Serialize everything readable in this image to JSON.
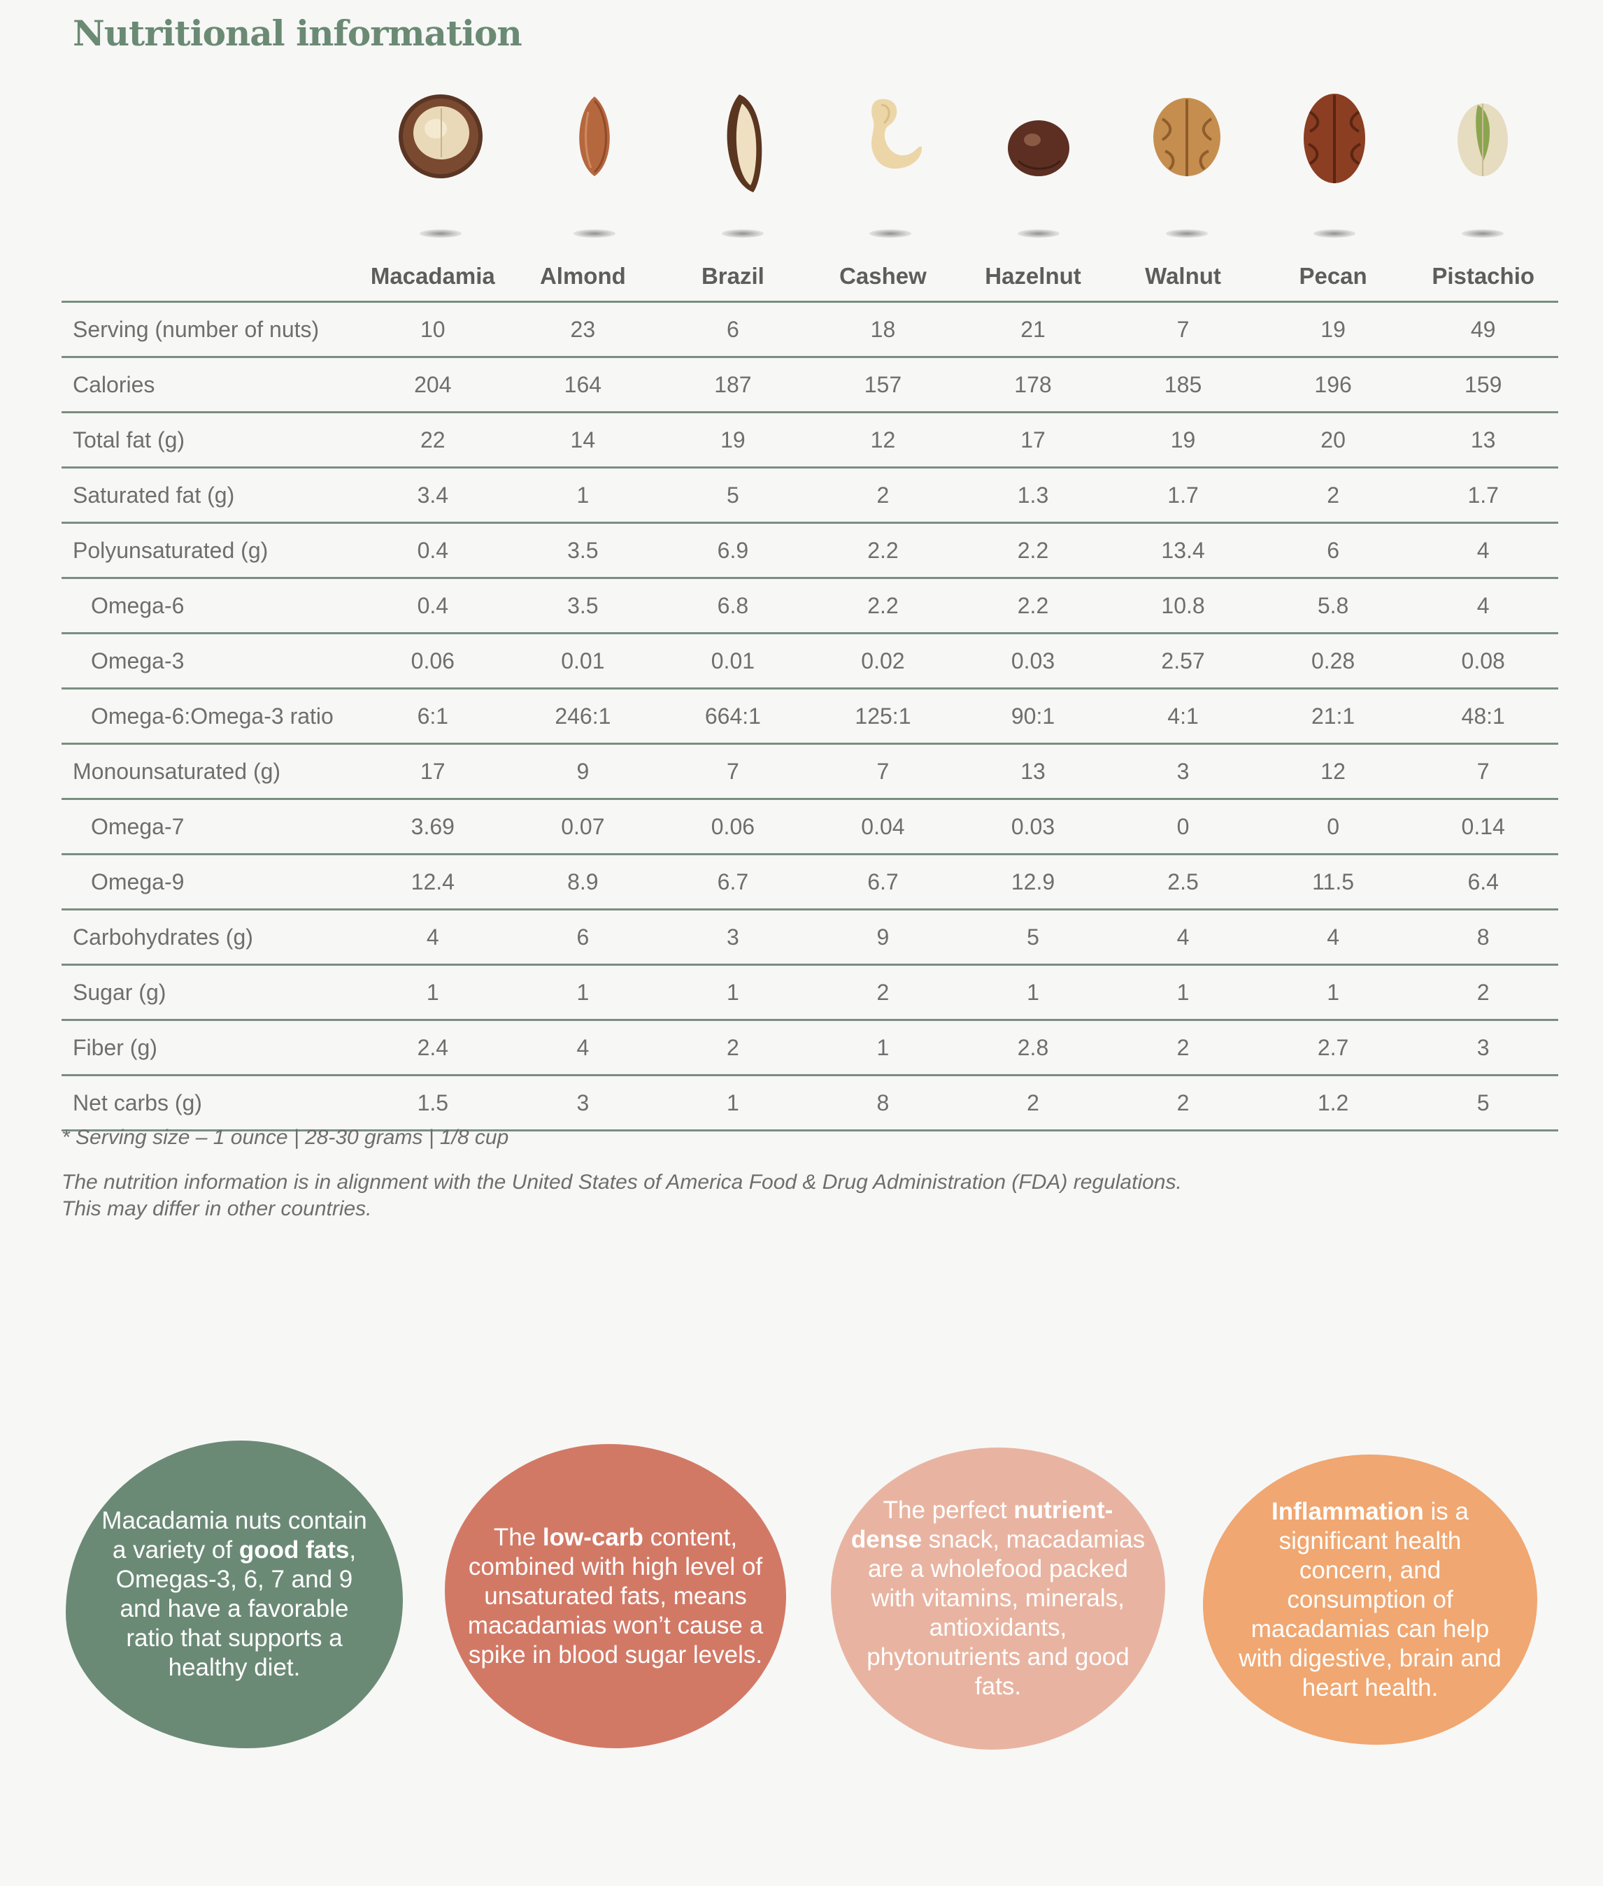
{
  "page": {
    "title": "Nutritional information"
  },
  "table": {
    "columns": [
      "Macadamia",
      "Almond",
      "Brazil",
      "Cashew",
      "Hazelnut",
      "Walnut",
      "Pecan",
      "Pistachio"
    ],
    "rows": [
      {
        "label": "Serving (number of nuts)",
        "sub": false,
        "values": [
          "10",
          "23",
          "6",
          "18",
          "21",
          "7",
          "19",
          "49"
        ]
      },
      {
        "label": "Calories",
        "sub": false,
        "values": [
          "204",
          "164",
          "187",
          "157",
          "178",
          "185",
          "196",
          "159"
        ]
      },
      {
        "label": "Total fat (g)",
        "sub": false,
        "values": [
          "22",
          "14",
          "19",
          "12",
          "17",
          "19",
          "20",
          "13"
        ]
      },
      {
        "label": "Saturated fat (g)",
        "sub": false,
        "values": [
          "3.4",
          "1",
          "5",
          "2",
          "1.3",
          "1.7",
          "2",
          "1.7"
        ]
      },
      {
        "label": "Polyunsaturated (g)",
        "sub": false,
        "values": [
          "0.4",
          "3.5",
          "6.9",
          "2.2",
          "2.2",
          "13.4",
          "6",
          "4"
        ]
      },
      {
        "label": "Omega-6",
        "sub": true,
        "values": [
          "0.4",
          "3.5",
          "6.8",
          "2.2",
          "2.2",
          "10.8",
          "5.8",
          "4"
        ]
      },
      {
        "label": "Omega-3",
        "sub": true,
        "values": [
          "0.06",
          "0.01",
          "0.01",
          "0.02",
          "0.03",
          "2.57",
          "0.28",
          "0.08"
        ]
      },
      {
        "label": "Omega-6:Omega-3 ratio",
        "sub": true,
        "values": [
          "6:1",
          "246:1",
          "664:1",
          "125:1",
          "90:1",
          "4:1",
          "21:1",
          "48:1"
        ]
      },
      {
        "label": "Monounsaturated (g)",
        "sub": false,
        "values": [
          "17",
          "9",
          "7",
          "7",
          "13",
          "3",
          "12",
          "7"
        ]
      },
      {
        "label": "Omega-7",
        "sub": true,
        "values": [
          "3.69",
          "0.07",
          "0.06",
          "0.04",
          "0.03",
          "0",
          "0",
          "0.14"
        ]
      },
      {
        "label": "Omega-9",
        "sub": true,
        "values": [
          "12.4",
          "8.9",
          "6.7",
          "6.7",
          "12.9",
          "2.5",
          "11.5",
          "6.4"
        ]
      },
      {
        "label": "Carbohydrates (g)",
        "sub": false,
        "values": [
          "4",
          "6",
          "3",
          "9",
          "5",
          "4",
          "4",
          "8"
        ]
      },
      {
        "label": "Sugar (g)",
        "sub": false,
        "values": [
          "1",
          "1",
          "1",
          "2",
          "1",
          "1",
          "1",
          "2"
        ]
      },
      {
        "label": "Fiber (g)",
        "sub": false,
        "values": [
          "2.4",
          "4",
          "2",
          "1",
          "2.8",
          "2",
          "2.7",
          "3"
        ]
      },
      {
        "label": "Net carbs (g)",
        "sub": false,
        "values": [
          "1.5",
          "3",
          "1",
          "8",
          "2",
          "2",
          "1.2",
          "5"
        ]
      }
    ]
  },
  "notes": {
    "footnote": "*  Serving size – 1 ounce | 28-30 grams | 1/8 cup",
    "disclaimer_line1": "The nutrition information is in alignment with the United States of America Food & Drug Administration (FDA) regulations.",
    "disclaimer_line2": "This may differ in other countries."
  },
  "blobs": [
    {
      "color": "#6b8a76",
      "intro": "Macadamia nuts contain a variety of ",
      "bold": "good fats",
      "outro": ", Omegas-3, 6, 7 and 9 and have a favorable ratio that supports a healthy diet."
    },
    {
      "color": "#d27966",
      "intro": "The ",
      "bold": "low-carb",
      "outro": " content, combined with high level of unsaturated fats, means macadamias won’t cause a spike in blood sugar levels."
    },
    {
      "color": "#e8b4a1",
      "intro": "The perfect ",
      "bold": "nutrient-dense",
      "outro": " snack, macadamias are a wholefood packed with vitamins, minerals, antioxidants, phytonutrients and good fats."
    },
    {
      "color": "#f0a771",
      "intro": "",
      "bold": "Inflammation",
      "outro": " is a significant health concern, and consumption of macadamias can help with digestive, brain and heart health."
    }
  ],
  "icons": [
    "macadamia-nut-icon",
    "almond-nut-icon",
    "brazil-nut-icon",
    "cashew-nut-icon",
    "hazelnut-icon",
    "walnut-icon",
    "pecan-nut-icon",
    "pistachio-nut-icon"
  ],
  "colors": {
    "title": "#6a8a73",
    "rule": "#7a8e80",
    "background": "#f7f7f6"
  }
}
